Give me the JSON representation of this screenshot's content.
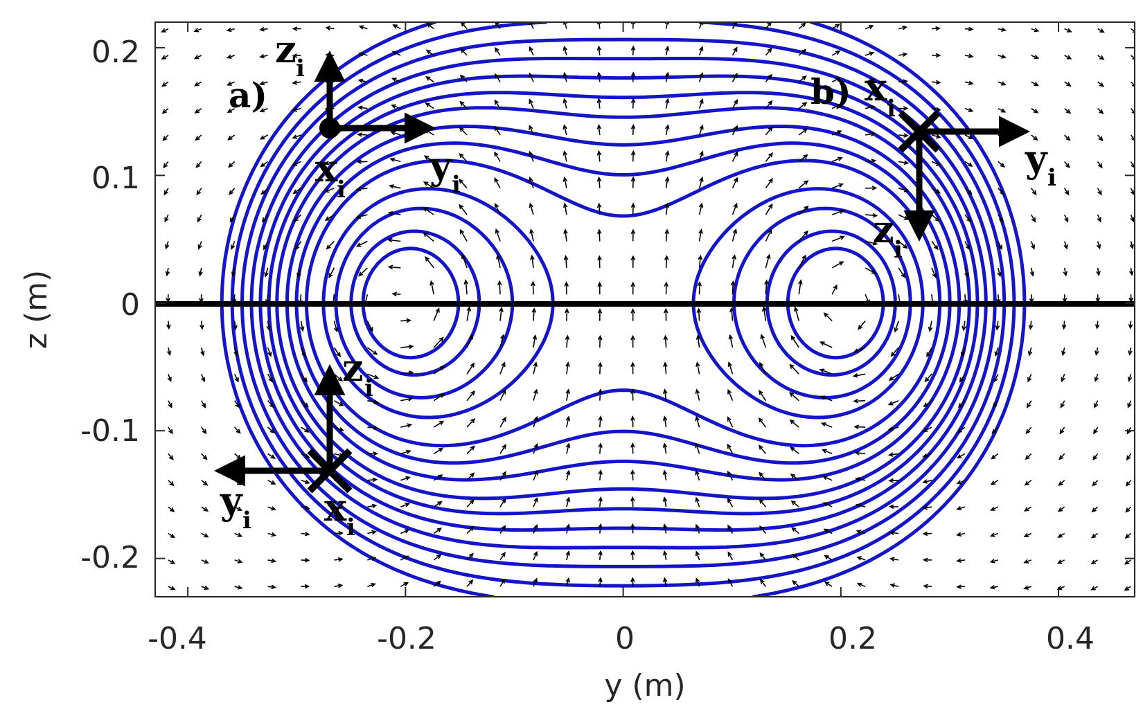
{
  "chart_data": {
    "type": "vector-field-with-contours",
    "xlabel": "y (m)",
    "ylabel": "z (m)",
    "xlim": [
      -0.43,
      0.47
    ],
    "ylim": [
      -0.23,
      0.22
    ],
    "xticks": [
      -0.4,
      -0.2,
      0,
      0.2,
      0.4
    ],
    "xtick_labels": [
      "-0.4",
      "-0.2",
      "0",
      "0.2",
      "0.4"
    ],
    "yticks": [
      -0.2,
      -0.1,
      0,
      0.1,
      0.2
    ],
    "ytick_labels": [
      "-0.2",
      "-0.1",
      "0",
      "0.1",
      "0.2"
    ],
    "vortex_centers": [
      {
        "y": -0.2,
        "z": 0.0
      },
      {
        "y": 0.2,
        "z": 0.0
      }
    ],
    "symmetry_line": {
      "z": 0
    },
    "contour_color": "#1414c8",
    "arrow_color": "#000000",
    "frames": [
      {
        "label": "a)",
        "origin": {
          "y": -0.27,
          "z": 0.138
        },
        "origin_symbol": "dot",
        "axes": [
          {
            "name": "z",
            "sub": "i",
            "dir": "up"
          },
          {
            "name": "y",
            "sub": "i",
            "dir": "right"
          },
          {
            "name": "x",
            "sub": "i",
            "dir": "out"
          }
        ]
      },
      {
        "label": "b)",
        "origin": {
          "y": 0.27,
          "z": 0.138
        },
        "origin_symbol": "cross",
        "axes": [
          {
            "name": "x",
            "sub": "i",
            "dir": "in"
          },
          {
            "name": "y",
            "sub": "i",
            "dir": "right"
          },
          {
            "name": "z",
            "sub": "i",
            "dir": "down"
          }
        ]
      },
      {
        "label": "",
        "origin": {
          "y": -0.27,
          "z": -0.132
        },
        "origin_symbol": "cross",
        "axes": [
          {
            "name": "z",
            "sub": "i",
            "dir": "up"
          },
          {
            "name": "y",
            "sub": "i",
            "dir": "left"
          },
          {
            "name": "x",
            "sub": "i",
            "dir": "in"
          }
        ]
      }
    ]
  },
  "labels": {
    "frame_a": "a)",
    "frame_b": "b)",
    "a_z": "z",
    "a_z_sub": "i",
    "a_y": "y",
    "a_y_sub": "i",
    "a_x": "x",
    "a_x_sub": "i",
    "b_x": "x",
    "b_x_sub": "i",
    "b_y": "y",
    "b_y_sub": "i",
    "b_z": "z",
    "b_z_sub": "i",
    "c_z": "z",
    "c_z_sub": "i",
    "c_y": "y",
    "c_y_sub": "i",
    "c_x": "x",
    "c_x_sub": "i"
  }
}
